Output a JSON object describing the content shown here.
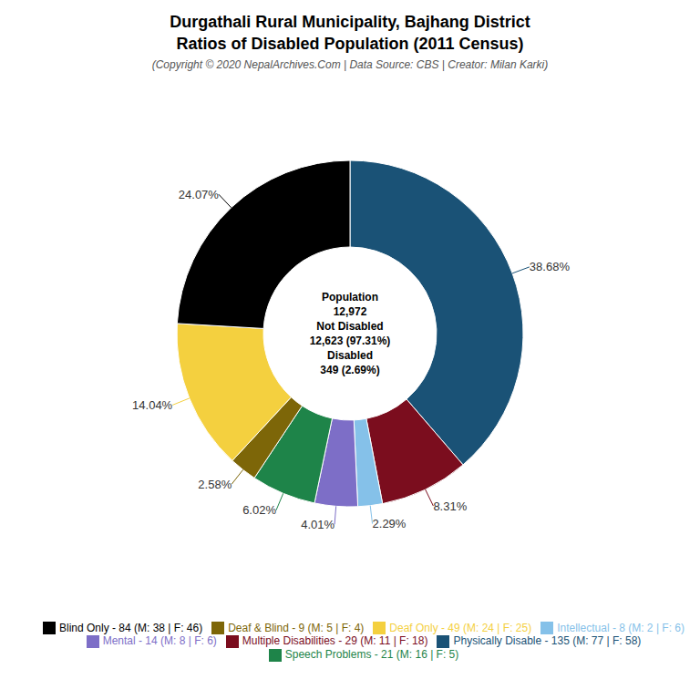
{
  "chart_data": {
    "type": "pie",
    "title": "Durgathali Rural Municipality, Bajhang District\nRatios of Disabled Population (2011 Census)",
    "subtitle": "(Copyright © 2020 NepalArchives.Com | Data Source: CBS | Creator: Milan Karki)",
    "categories": [
      "Physically Disable - 135 (M: 77 | F: 58)",
      "Multiple Disabilities - 29 (M: 11 | F: 18)",
      "Intellectual - 8 (M: 2 | F: 6)",
      "Mental - 14 (M: 8 | F: 6)",
      "Speech Problems - 21 (M: 16 | F: 5)",
      "Deaf & Blind - 9 (M: 5 | F: 4)",
      "Deaf Only - 49 (M: 24 | F: 25)",
      "Blind Only - 84 (M: 38 | F: 46)"
    ],
    "values": [
      38.68,
      8.31,
      2.29,
      4.01,
      6.02,
      2.58,
      14.04,
      24.07
    ],
    "value_labels": [
      "38.68%",
      "8.31%",
      "2.29%",
      "4.01%",
      "6.02%",
      "2.58%",
      "14.04%",
      "24.07%"
    ],
    "colors": [
      "#1a5276",
      "#7b0d1e",
      "#85c1e9",
      "#7d6ec7",
      "#1e8449",
      "#7d6608",
      "#f4d03f",
      "#000000"
    ],
    "data_labels": true,
    "legend": "bottom",
    "annotations": [
      "Population",
      "12,972",
      "Not Disabled",
      "12,623 (97.31%)",
      "Disabled",
      "349 (2.69%)"
    ]
  }
}
